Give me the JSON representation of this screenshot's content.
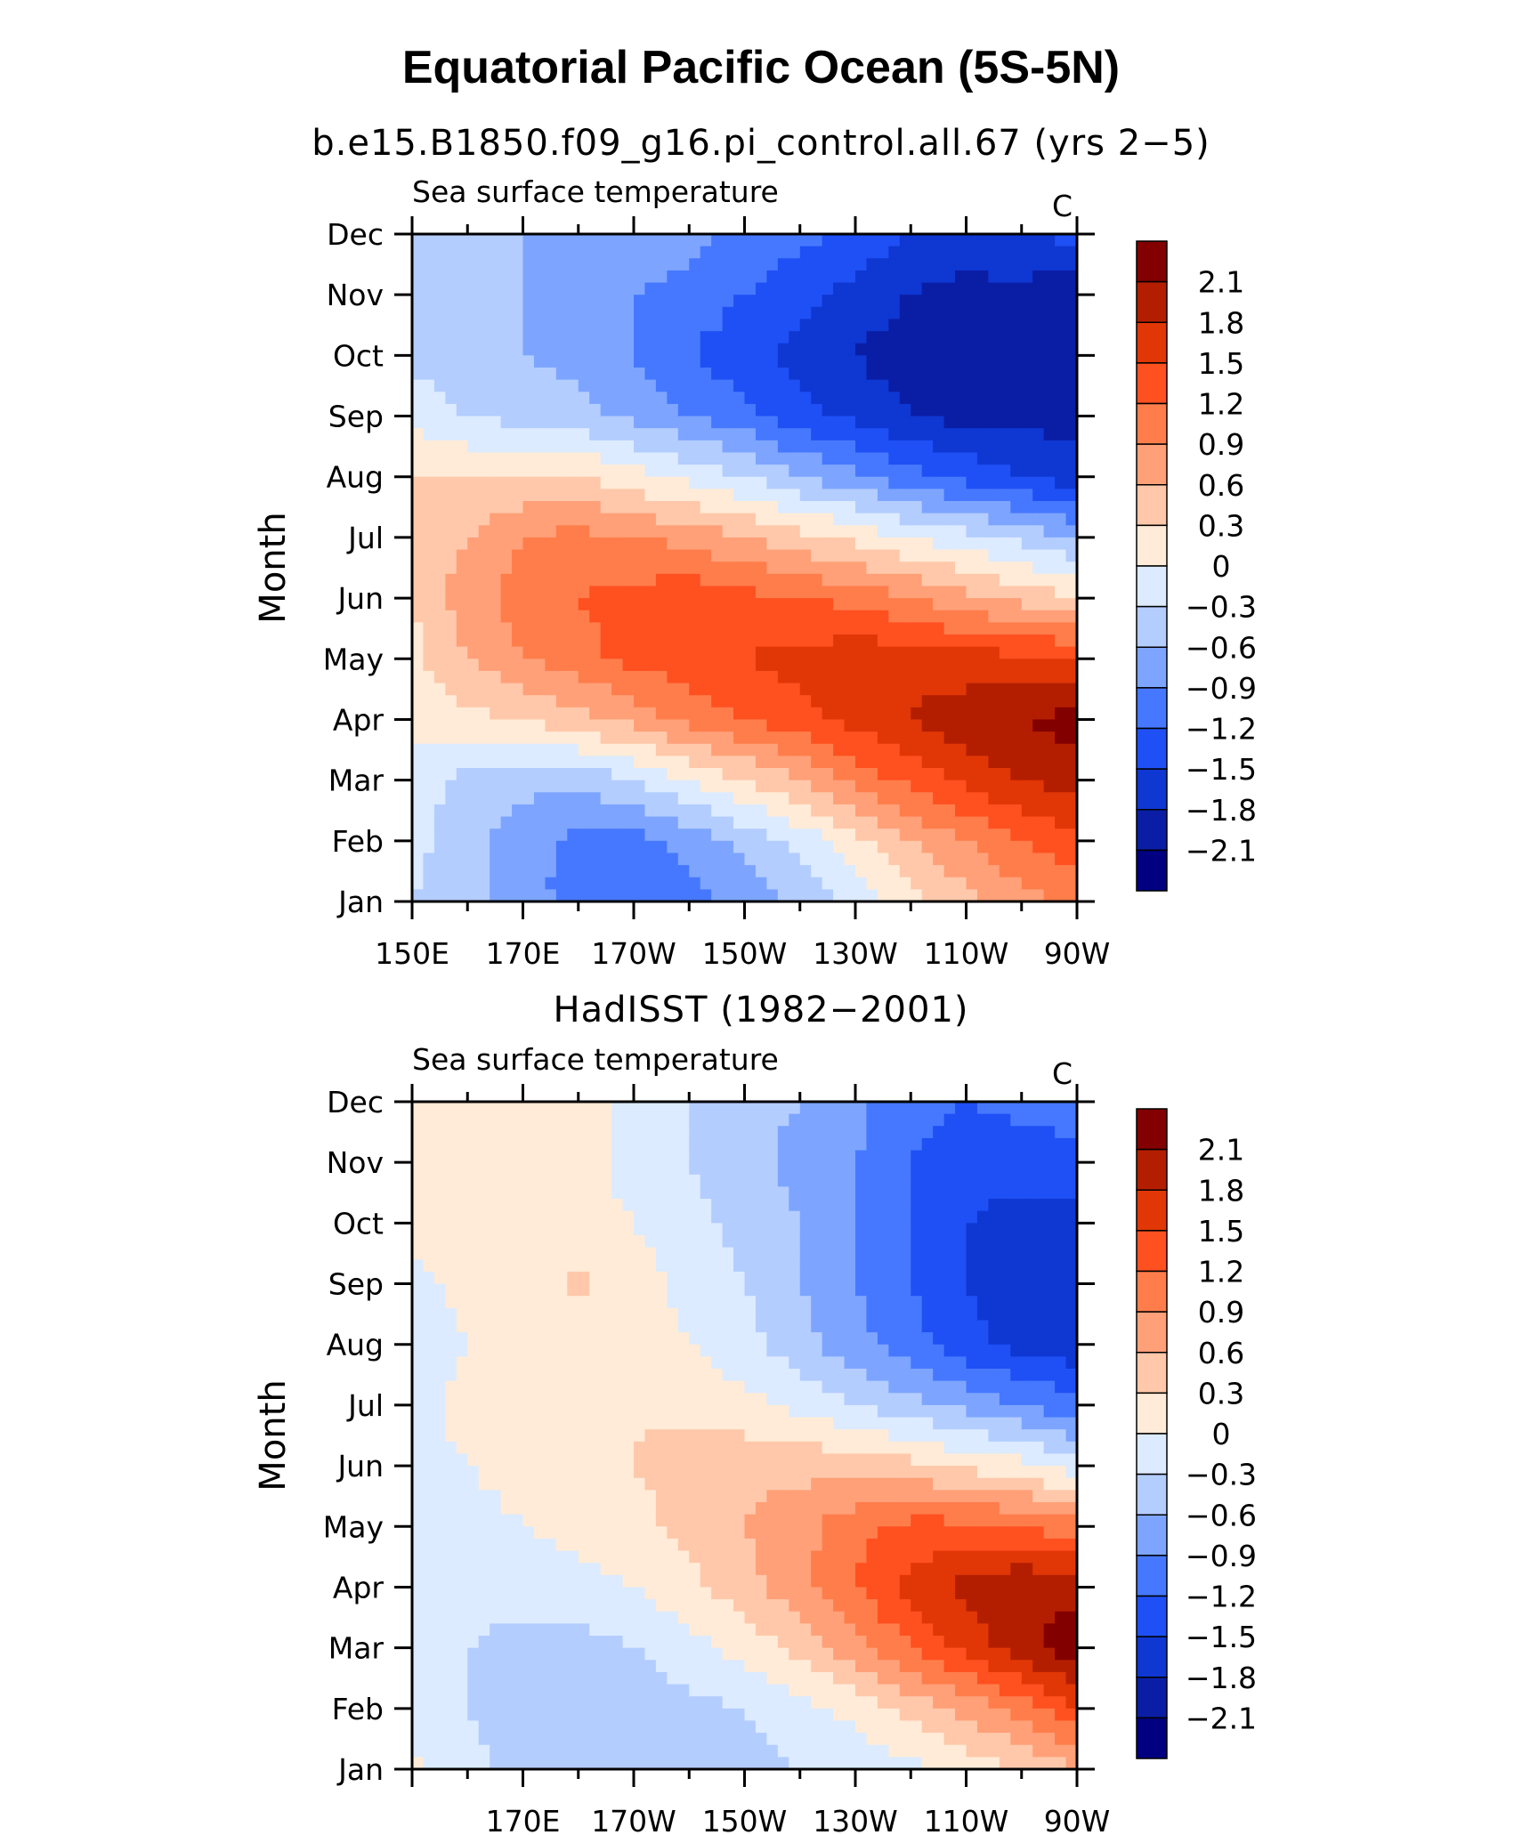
{
  "figure": {
    "title": "Equatorial Pacific Ocean (5S-5N)",
    "colors": [
      "#000080",
      "#0a1ea5",
      "#0f37d2",
      "#1e50f5",
      "#4678ff",
      "#7da5ff",
      "#b4cdff",
      "#dcebff",
      "#ffebd7",
      "#ffc8aa",
      "#ffa078",
      "#ff7d4b",
      "#ff5020",
      "#e13706",
      "#b41e00",
      "#820000"
    ]
  },
  "chart_data": [
    {
      "type": "heatmap",
      "panel_title": "b.e15.B1850.f09_g16.pi_control.all.67 (yrs 2−5)",
      "left_label": "Sea surface temperature",
      "right_label": "C",
      "ylabel": "Month",
      "xlabel": "",
      "x_tick_labels": [
        "150E",
        "170E",
        "170W",
        "150W",
        "130W",
        "110W",
        "90W"
      ],
      "y_tick_labels": [
        "Jan",
        "Feb",
        "Mar",
        "Apr",
        "May",
        "Jun",
        "Jul",
        "Aug",
        "Sep",
        "Oct",
        "Nov",
        "Dec"
      ],
      "x_range": [
        150,
        270
      ],
      "contour_levels": [
        -2.1,
        -1.8,
        -1.5,
        -1.2,
        -0.9,
        -0.6,
        -0.3,
        0,
        0.3,
        0.6,
        0.9,
        1.2,
        1.5,
        1.8,
        2.1
      ],
      "colorbar_labels": [
        "2.1",
        "1.8",
        "1.5",
        "1.2",
        "0.9",
        "0.6",
        "0.3",
        "0",
        "−0.3",
        "−0.6",
        "−0.9",
        "−1.2",
        "−1.5",
        "−1.8",
        "−2.1"
      ],
      "x_lon": [
        150,
        160,
        170,
        180,
        190,
        200,
        210,
        220,
        230,
        240,
        250,
        260,
        270
      ],
      "values": [
        [
          -0.3,
          -0.5,
          -0.8,
          -1.0,
          -1.1,
          -1.0,
          -0.8,
          -0.5,
          -0.2,
          0.2,
          0.5,
          0.8,
          1.0
        ],
        [
          -0.2,
          -0.5,
          -0.8,
          -1.0,
          -1.0,
          -0.8,
          -0.5,
          -0.2,
          0.2,
          0.6,
          0.9,
          1.2,
          1.4
        ],
        [
          -0.1,
          -0.4,
          -0.5,
          -0.5,
          -0.3,
          0.0,
          0.3,
          0.6,
          1.0,
          1.3,
          1.6,
          1.8,
          2.0
        ],
        [
          0.1,
          0.2,
          0.3,
          0.5,
          0.7,
          1.0,
          1.2,
          1.4,
          1.6,
          1.8,
          2.0,
          2.1,
          2.2
        ],
        [
          0.2,
          0.6,
          0.9,
          1.1,
          1.3,
          1.4,
          1.5,
          1.6,
          1.7,
          1.7,
          1.6,
          1.6,
          1.5
        ],
        [
          0.3,
          0.8,
          1.0,
          1.2,
          1.3,
          1.4,
          1.3,
          1.2,
          1.1,
          0.9,
          0.7,
          0.5,
          0.3
        ],
        [
          0.3,
          0.6,
          0.9,
          1.0,
          0.9,
          0.8,
          0.6,
          0.4,
          0.2,
          0.0,
          -0.2,
          -0.4,
          -0.6
        ],
        [
          0.3,
          0.3,
          0.3,
          0.3,
          0.1,
          -0.1,
          -0.3,
          -0.6,
          -0.8,
          -1.1,
          -1.3,
          -1.5,
          -1.7
        ],
        [
          -0.1,
          -0.3,
          -0.4,
          -0.5,
          -0.7,
          -0.9,
          -1.1,
          -1.4,
          -1.6,
          -1.8,
          -1.9,
          -1.9,
          -1.9
        ],
        [
          -0.4,
          -0.5,
          -0.6,
          -0.7,
          -0.9,
          -1.2,
          -1.4,
          -1.6,
          -1.8,
          -2.0,
          -2.1,
          -2.0,
          -1.9
        ],
        [
          -0.5,
          -0.5,
          -0.6,
          -0.7,
          -0.9,
          -1.0,
          -1.2,
          -1.4,
          -1.6,
          -1.8,
          -1.9,
          -1.9,
          -2.1
        ],
        [
          -0.3,
          -0.4,
          -0.6,
          -0.6,
          -0.7,
          -0.8,
          -1.0,
          -1.1,
          -1.3,
          -1.5,
          -1.6,
          -1.5,
          -1.4
        ]
      ]
    },
    {
      "type": "heatmap",
      "panel_title": "HadISST (1982−2001)",
      "left_label": "Sea surface temperature",
      "right_label": "C",
      "ylabel": "Month",
      "xlabel": "",
      "x_tick_labels": [
        "170E",
        "170W",
        "150W",
        "130W",
        "110W",
        "90W"
      ],
      "y_tick_labels": [
        "Jan",
        "Feb",
        "Mar",
        "Apr",
        "May",
        "Jun",
        "Jul",
        "Aug",
        "Sep",
        "Oct",
        "Nov",
        "Dec"
      ],
      "x_range": [
        150,
        270
      ],
      "contour_levels": [
        -2.1,
        -1.8,
        -1.5,
        -1.2,
        -0.9,
        -0.6,
        -0.3,
        0,
        0.3,
        0.6,
        0.9,
        1.2,
        1.5,
        1.8,
        2.1
      ],
      "colorbar_labels": [
        "2.1",
        "1.8",
        "1.5",
        "1.2",
        "0.9",
        "0.6",
        "0.3",
        "0",
        "−0.3",
        "−0.6",
        "−0.9",
        "−1.2",
        "−1.5",
        "−1.8",
        "−2.1"
      ],
      "x_lon": [
        150,
        160,
        170,
        180,
        190,
        200,
        210,
        220,
        230,
        240,
        250,
        260,
        270
      ],
      "values": [
        [
          0.05,
          -0.2,
          -0.4,
          -0.5,
          -0.5,
          -0.5,
          -0.4,
          -0.3,
          -0.2,
          -0.1,
          0.1,
          0.3,
          0.6
        ],
        [
          -0.1,
          -0.3,
          -0.5,
          -0.5,
          -0.5,
          -0.4,
          -0.3,
          -0.1,
          0.1,
          0.4,
          0.7,
          1.0,
          1.5
        ],
        [
          -0.1,
          -0.3,
          -0.4,
          -0.4,
          -0.3,
          -0.1,
          0.1,
          0.4,
          0.8,
          1.2,
          1.6,
          2.0,
          2.3
        ],
        [
          -0.1,
          -0.2,
          -0.2,
          -0.1,
          0.0,
          0.2,
          0.5,
          0.8,
          1.2,
          1.6,
          1.9,
          2.1,
          2.0
        ],
        [
          -0.1,
          -0.1,
          0.0,
          0.1,
          0.2,
          0.4,
          0.6,
          0.8,
          1.1,
          1.3,
          1.3,
          1.2,
          1.0
        ],
        [
          -0.1,
          0.0,
          0.1,
          0.2,
          0.3,
          0.4,
          0.5,
          0.5,
          0.5,
          0.4,
          0.2,
          0.1,
          -0.2
        ],
        [
          -0.1,
          0.1,
          0.2,
          0.2,
          0.3,
          0.2,
          0.1,
          -0.1,
          -0.3,
          -0.5,
          -0.7,
          -0.9,
          -1.1
        ],
        [
          -0.15,
          0.0,
          0.15,
          0.2,
          0.15,
          0.0,
          -0.2,
          -0.5,
          -0.8,
          -1.1,
          -1.4,
          -1.6,
          -1.7
        ],
        [
          -0.1,
          0.1,
          0.2,
          0.35,
          0.15,
          -0.1,
          -0.3,
          -0.6,
          -0.9,
          -1.2,
          -1.5,
          -1.7,
          -1.7
        ],
        [
          0.1,
          0.15,
          0.15,
          0.1,
          0.0,
          -0.2,
          -0.4,
          -0.6,
          -0.9,
          -1.2,
          -1.5,
          -1.6,
          -1.6
        ],
        [
          0.1,
          0.15,
          0.15,
          0.1,
          -0.1,
          -0.3,
          -0.5,
          -0.7,
          -0.9,
          -1.2,
          -1.4,
          -1.4,
          -1.3
        ],
        [
          0.1,
          0.15,
          0.15,
          0.1,
          -0.1,
          -0.3,
          -0.5,
          -0.6,
          -0.8,
          -1.1,
          -1.2,
          -1.1,
          -1.0
        ]
      ]
    }
  ]
}
